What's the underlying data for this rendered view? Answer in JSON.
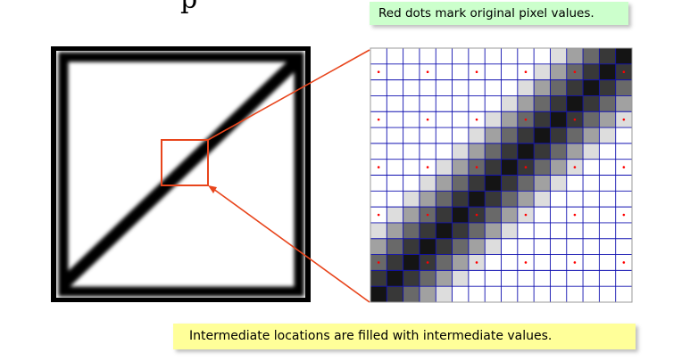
{
  "title_fragment": "p",
  "notes": {
    "top": "Red dots mark original pixel values.",
    "bottom": "Intermediate locations are filled with intermediate values."
  },
  "colors": {
    "zoom_box": "#e8451c",
    "grid_lines": "#1010b0",
    "sample_dots": "#ff0000",
    "note_top_bg": "#ccffcc",
    "note_bottom_bg": "#ffff99"
  }
}
